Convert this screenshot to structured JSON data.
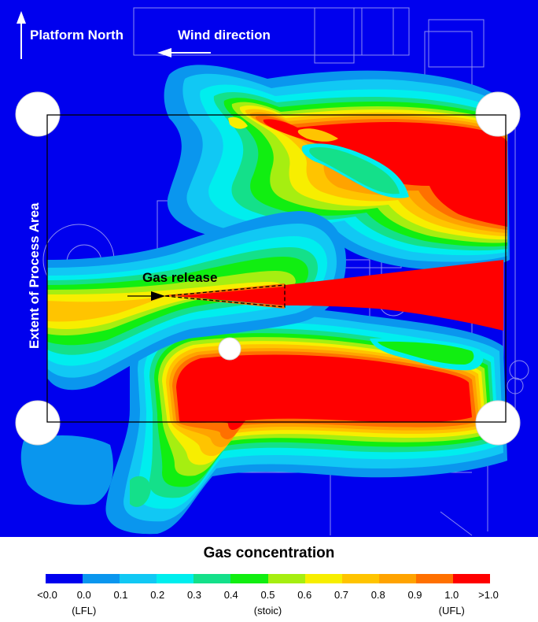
{
  "labels": {
    "platform_north": "Platform North",
    "wind_direction": "Wind direction",
    "extent": "Extent of Process Area",
    "gas_release": "Gas release"
  },
  "legend": {
    "title": "Gas concentration",
    "ticks": [
      "<0.0",
      "0.0",
      "0.1",
      "0.2",
      "0.3",
      "0.4",
      "0.5",
      "0.6",
      "0.7",
      "0.8",
      "0.9",
      "1.0",
      ">1.0"
    ],
    "sublabels": [
      {
        "text": "(LFL)",
        "tick_index": 1
      },
      {
        "text": "(stoic)",
        "tick_index": 6
      },
      {
        "text": "(UFL)",
        "tick_index": 11
      }
    ],
    "colors": [
      "#0000ee",
      "#0a96ee",
      "#11c8f4",
      "#00eeee",
      "#14e08a",
      "#11ee11",
      "#a6ee11",
      "#f7ee00",
      "#ffc400",
      "#ffa300",
      "#ff7000",
      "#ff0000"
    ]
  },
  "colors": {
    "background": "#0000ee",
    "stroke": "#c8c8ff"
  }
}
